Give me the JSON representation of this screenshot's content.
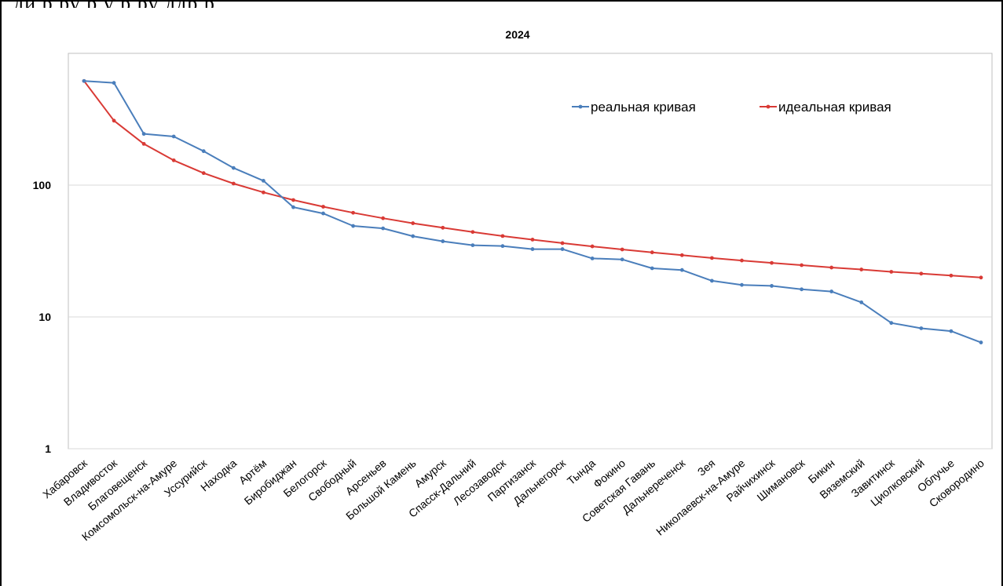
{
  "header_fragment": "             ,   ди        р        ру                р         у                      р ру    ддр р",
  "chart_data": {
    "type": "line",
    "title": "2024",
    "xlabel": "",
    "ylabel": "",
    "yscale": "log",
    "ylim": [
      1,
      1000
    ],
    "yticks": [
      1,
      10,
      100
    ],
    "ytick_labels": [
      "1",
      "10",
      "100"
    ],
    "grid": true,
    "legend_position": "top-right",
    "categories": [
      "Хабаровск",
      "Владивосток",
      "Благовещенск",
      "Комсомольск-на-Амуре",
      "Уссурийск",
      "Находка",
      "Артём",
      "Биробиджан",
      "Белогорск",
      "Свободный",
      "Арсеньев",
      "Большой Камень",
      "Амурск",
      "Спасск-Дальний",
      "Лесозаводск",
      "Партизанск",
      "Дальнегорск",
      "Тында",
      "Фокино",
      "Советская Гавань",
      "Дальнереченск",
      "Зея",
      "Николаевск-на-Амуре",
      "Райчихинск",
      "Шимановск",
      "Бикин",
      "Вяземский",
      "Завитинск",
      "Циолковский",
      "Облучье",
      "Сковородино"
    ],
    "series": [
      {
        "name": "реальная кривая",
        "color": "#4a7ebb",
        "values": [
          617,
          597,
          245,
          234,
          181,
          135,
          108,
          68,
          61,
          49,
          47,
          41,
          37.5,
          35,
          34.5,
          32.7,
          32.7,
          27.8,
          27.3,
          23.4,
          22.7,
          18.8,
          17.5,
          17.2,
          16.2,
          15.6,
          12.9,
          9.0,
          8.2,
          7.8,
          6.4
        ]
      },
      {
        "name": "идеальная кривая",
        "color": "#d93a35",
        "values": [
          617,
          308.5,
          205.7,
          154.3,
          123.4,
          102.8,
          88.1,
          77.1,
          68.6,
          61.7,
          56.1,
          51.4,
          47.5,
          44.1,
          41.1,
          38.6,
          36.3,
          34.3,
          32.5,
          30.9,
          29.4,
          28.0,
          26.8,
          25.7,
          24.7,
          23.7,
          22.9,
          22.0,
          21.3,
          20.6,
          19.9
        ]
      }
    ]
  }
}
